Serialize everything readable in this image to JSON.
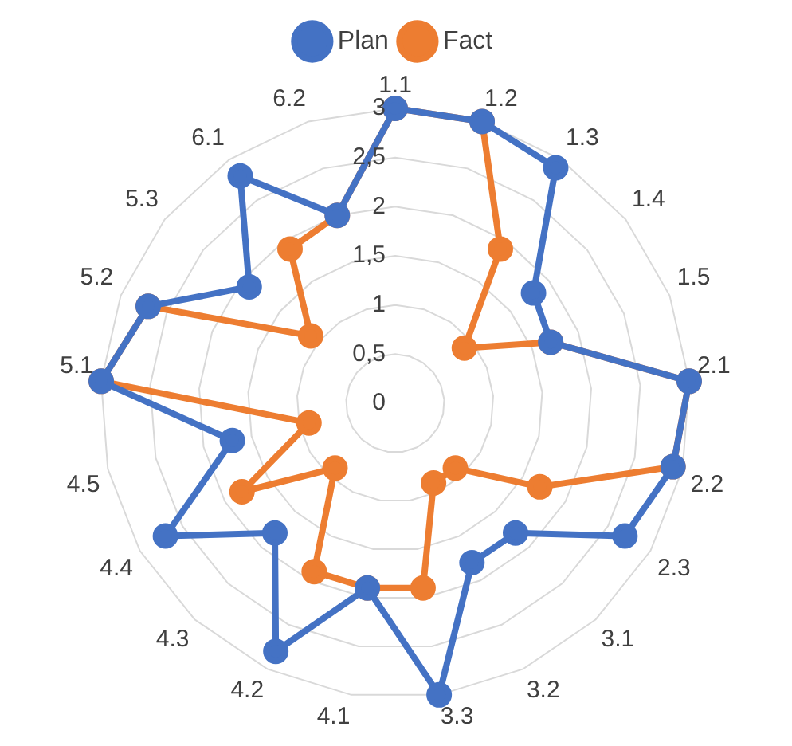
{
  "chart_data": {
    "type": "radar",
    "categories": [
      "1.1",
      "1.2",
      "1.3",
      "1.4",
      "1.5",
      "2.1",
      "2.2",
      "2.3",
      "3.1",
      "3.2",
      "3.3",
      "4.1",
      "4.2",
      "4.3",
      "4.4",
      "4.5",
      "5.1",
      "5.2",
      "5.3",
      "6.1",
      "6.2"
    ],
    "series": [
      {
        "name": "Plan",
        "color": "#4472c4",
        "values": [
          3,
          3,
          2.9,
          1.8,
          1.7,
          3,
          2.9,
          2.7,
          1.8,
          1.8,
          3,
          1.9,
          2.8,
          1.8,
          2.7,
          1.7,
          3,
          2.7,
          1.9,
          2.8,
          2
        ]
      },
      {
        "name": "Fact",
        "color": "#ed7d31",
        "values": [
          3,
          3,
          1.9,
          0.9,
          1.7,
          3,
          2.9,
          1.7,
          0.9,
          0.9,
          1.9,
          1.9,
          1.9,
          0.9,
          1.8,
          0.9,
          3,
          2.7,
          1.1,
          1.9,
          2
        ]
      }
    ],
    "ylim": [
      0,
      3
    ],
    "yticks": [
      0,
      {
        "value": 0.5,
        "label": "0,5"
      },
      1,
      {
        "value": 1.5,
        "label": "1,5"
      },
      2,
      {
        "value": 2.5,
        "label": "2,5"
      },
      3
    ],
    "grid": true,
    "legend": "top",
    "marker": "circle",
    "line_style": "solid"
  }
}
